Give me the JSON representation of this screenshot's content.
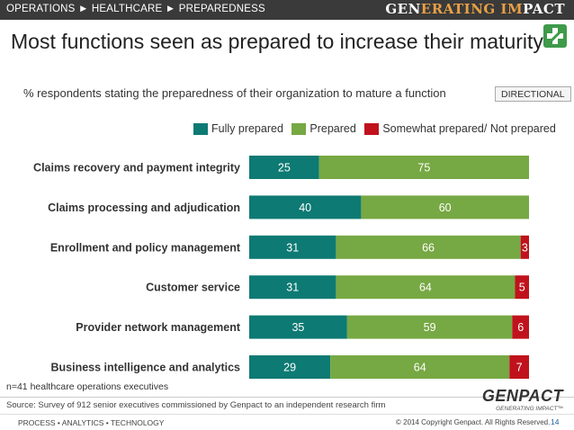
{
  "header": {
    "breadcrumb": "OPERATIONS ► HEALTHCARE ► PREPAREDNESS",
    "brand_part1": "GEN",
    "brand_part2": "ERATING IM",
    "brand_part3": "PACT"
  },
  "title": "Most functions seen as prepared to increase their maturity",
  "subtitle": "% respondents stating the preparedness of their organization to mature a function",
  "directional_badge": "DIRECTIONAL",
  "note": "n=41 healthcare operations executives",
  "source": "Source: Survey of 912 senior executives commissioned by Genpact to an independent research firm",
  "footer": {
    "logo": "GENPACT",
    "logo_tagline": "GENERATING IMPACT™",
    "left": "PROCESS • ANALYTICS • TECHNOLOGY",
    "copyright": "© 2014 Copyright Genpact. All Rights Reserved.",
    "page_number": "14"
  },
  "colors": {
    "fully_prepared": "#0d7a73",
    "prepared": "#76a843",
    "not_prepared": "#c0121c"
  },
  "chart_data": {
    "type": "bar",
    "orientation": "horizontal",
    "stacked": true,
    "title": "",
    "xlabel": "",
    "ylabel": "",
    "xlim": [
      0,
      100
    ],
    "legend_position": "top-right",
    "categories": [
      "Claims recovery and payment integrity",
      "Claims processing and adjudication",
      "Enrollment and policy management",
      "Customer service",
      "Provider network management",
      "Business intelligence and analytics"
    ],
    "series": [
      {
        "name": "Fully prepared",
        "values": [
          25,
          40,
          31,
          31,
          35,
          29
        ]
      },
      {
        "name": "Prepared",
        "values": [
          75,
          60,
          66,
          64,
          59,
          64
        ]
      },
      {
        "name": "Somewhat prepared/ Not prepared",
        "values": [
          0,
          0,
          3,
          5,
          6,
          7
        ]
      }
    ]
  }
}
